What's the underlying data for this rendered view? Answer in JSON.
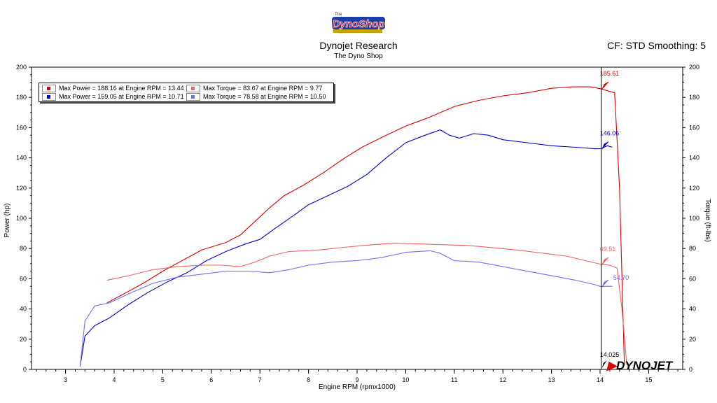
{
  "header": {
    "logo_text": "The Dyno Shop",
    "title": "Dynojet Research",
    "subtitle": "The Dyno Shop",
    "cf": "CF: STD Smoothing: 5"
  },
  "legend": [
    {
      "label": "Max Power = 188.16 at Engine RPM = 13.44",
      "color": "#dd0000"
    },
    {
      "label": "Max Torque = 83.67 at Engine RPM = 9.77",
      "color": "#f06060"
    },
    {
      "label": "Max Power = 159.05 at Engine RPM = 10.71",
      "color": "#0000cc"
    },
    {
      "label": "Max Torque = 78.58 at Engine RPM = 10.50",
      "color": "#6f6ff0"
    }
  ],
  "chart_data": {
    "type": "line",
    "xlabel": "Engine RPM (rpmx1000)",
    "ylabel": "Power (hp)",
    "ylabel_right": "Torque (ft-lbs)",
    "xlim": [
      2.3,
      15.7
    ],
    "ylim": [
      0,
      200
    ],
    "x_ticks": [
      3,
      4,
      5,
      6,
      7,
      8,
      9,
      10,
      11,
      12,
      13,
      14,
      15
    ],
    "y_ticks": [
      0,
      20,
      40,
      60,
      80,
      100,
      120,
      140,
      160,
      180,
      200
    ],
    "cursor": {
      "x": 14.025,
      "label": "14.025"
    },
    "cursor_values": [
      {
        "value": "185.61",
        "y": 185.61,
        "color": "#dd0000"
      },
      {
        "value": "146.06",
        "y": 146.06,
        "color": "#0000cc"
      },
      {
        "value": "69.51",
        "y": 69.51,
        "color": "#f06060"
      },
      {
        "value": "54.70",
        "y": 54.7,
        "color": "#6f6ff0"
      }
    ],
    "series": [
      {
        "name": "Max Power = 188.16 at Engine RPM = 13.44",
        "color": "#dd0000",
        "axis": "left",
        "x": [
          3.85,
          4.2,
          4.6,
          5.0,
          5.4,
          5.8,
          6.0,
          6.3,
          6.6,
          6.9,
          7.2,
          7.5,
          7.9,
          8.3,
          8.7,
          9.1,
          9.6,
          10.0,
          10.5,
          11.0,
          11.5,
          12.0,
          12.5,
          13.0,
          13.44,
          13.8,
          14.025,
          14.3,
          14.4,
          14.5
        ],
        "y": [
          44,
          50,
          57,
          65,
          72,
          79,
          81,
          84,
          89,
          98,
          107,
          115,
          122,
          130,
          139,
          147,
          155,
          161,
          167,
          174,
          178,
          181,
          183,
          186,
          187,
          187,
          185.6,
          183,
          120,
          3
        ]
      },
      {
        "name": "Max Power = 159.05 at Engine RPM = 10.71",
        "color": "#0000cc",
        "axis": "left",
        "x": [
          3.3,
          3.4,
          3.6,
          3.9,
          4.3,
          4.7,
          5.1,
          5.5,
          5.9,
          6.3,
          6.7,
          7.0,
          7.3,
          7.7,
          8.0,
          8.4,
          8.8,
          9.2,
          9.6,
          10.0,
          10.4,
          10.71,
          10.9,
          11.1,
          11.4,
          11.7,
          12.0,
          12.5,
          13.0,
          13.5,
          13.9,
          14.025,
          14.15,
          14.25
        ],
        "y": [
          2,
          22,
          29,
          34,
          43,
          51,
          58,
          64,
          72,
          78,
          83,
          86,
          93,
          102,
          109,
          115,
          121,
          129,
          140,
          150,
          155,
          158.5,
          155,
          153,
          156,
          155,
          152,
          150,
          148,
          147,
          146,
          146.06,
          148,
          147
        ]
      },
      {
        "name": "Max Torque = 83.67 at Engine RPM = 9.77",
        "color": "#f06060",
        "axis": "right",
        "x": [
          3.85,
          4.3,
          4.8,
          5.3,
          5.8,
          6.2,
          6.6,
          6.9,
          7.2,
          7.6,
          8.2,
          8.8,
          9.3,
          9.77,
          10.3,
          10.8,
          11.3,
          11.8,
          12.3,
          12.8,
          13.3,
          13.7,
          14.025,
          14.2,
          14.35,
          14.45,
          14.55
        ],
        "y": [
          59,
          62,
          66,
          68,
          69,
          69,
          68,
          71,
          75,
          78,
          79,
          81,
          82.5,
          83.5,
          83,
          82.5,
          82,
          80.5,
          79,
          77,
          75,
          72,
          69.5,
          69,
          67,
          40,
          3
        ]
      },
      {
        "name": "Max Torque = 78.58 at Engine RPM = 10.50",
        "color": "#6f6ff0",
        "axis": "right",
        "x": [
          3.3,
          3.4,
          3.6,
          3.9,
          4.3,
          4.8,
          5.3,
          5.8,
          6.3,
          6.8,
          7.2,
          7.6,
          8.0,
          8.5,
          9.0,
          9.5,
          10.0,
          10.5,
          10.7,
          11.0,
          11.5,
          12.0,
          12.5,
          13.0,
          13.5,
          13.9,
          14.025,
          14.1,
          14.25
        ],
        "y": [
          2,
          32,
          42,
          44,
          50,
          57,
          61,
          63,
          65,
          65,
          64,
          66,
          69,
          71,
          72,
          74,
          77.5,
          78.5,
          77,
          72,
          71,
          68,
          65,
          62,
          59,
          56,
          54.7,
          55,
          55
        ]
      }
    ]
  },
  "watermark": "DYNOJET"
}
